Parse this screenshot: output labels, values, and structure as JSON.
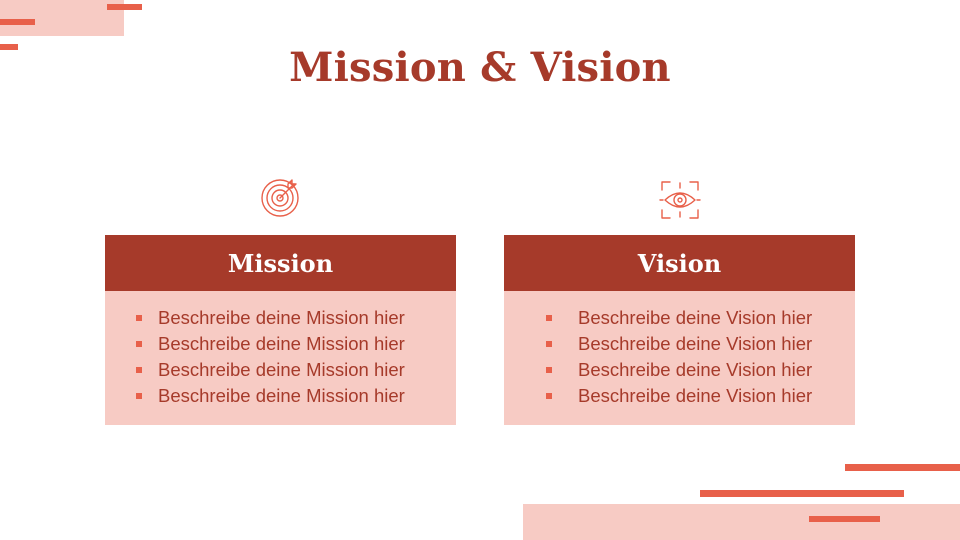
{
  "title": "Mission & Vision",
  "colors": {
    "primary": "#a63a2a",
    "light": "#f7cbc4",
    "accent": "#e8604a"
  },
  "mission": {
    "icon": "target-arrow-icon",
    "heading": "Mission",
    "items": [
      "Beschreibe deine Mission hier",
      "Beschreibe deine Mission hier",
      "Beschreibe deine Mission hier",
      "Beschreibe deine Mission hier"
    ]
  },
  "vision": {
    "icon": "eye-focus-icon",
    "heading": "Vision",
    "items": [
      "Beschreibe deine Vision hier",
      "Beschreibe deine Vision hier",
      "Beschreibe deine Vision hier",
      "Beschreibe deine Vision hier"
    ]
  }
}
